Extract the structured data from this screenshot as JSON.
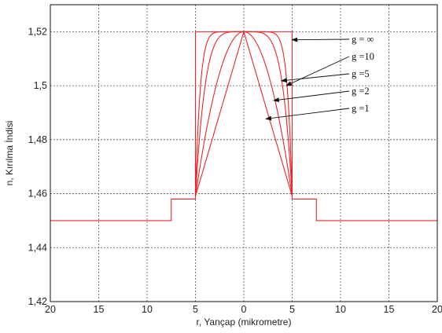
{
  "chart_data": {
    "type": "line",
    "title": "",
    "xlabel": "r, Yançap (mikrometre)",
    "ylabel": "n, Kırılma İndisi",
    "xlim": [
      -20,
      20
    ],
    "ylim": [
      1.42,
      1.53
    ],
    "x_ticks": [
      -20,
      -15,
      -10,
      -5,
      0,
      5,
      10,
      15,
      20
    ],
    "x_tick_labels": [
      "20",
      "15",
      "10",
      "5",
      "0",
      "5",
      "10",
      "15",
      "20"
    ],
    "y_ticks": [
      1.42,
      1.44,
      1.46,
      1.48,
      1.5,
      1.52
    ],
    "y_tick_labels": [
      "1,42",
      "1,44",
      "1,46",
      "1,48",
      "1,5",
      "1,52"
    ],
    "grid": true,
    "line_color": "#e8262b",
    "profile": {
      "n1": 1.52,
      "n_core_edge": 1.459,
      "n_ring": 1.458,
      "n_clad": 1.45,
      "core_radius": 5,
      "ring_radius": 7.5
    },
    "series": [
      {
        "g": "inf",
        "label": "g = ∞"
      },
      {
        "g": 10,
        "label": "g =10"
      },
      {
        "g": 5,
        "label": "g =5"
      },
      {
        "g": 2,
        "label": "g =2"
      },
      {
        "g": 1,
        "label": "g =1"
      }
    ],
    "annotations": [
      {
        "text": "g = ∞",
        "target_series": "inf",
        "target_r": 4.9,
        "target_n": 1.517
      },
      {
        "text": "g =10",
        "target_series": 10,
        "target_r": 4.3,
        "target_n": 1.5
      },
      {
        "text": "g =5",
        "target_series": 5,
        "target_r": 3.8,
        "target_n": 1.5018
      },
      {
        "text": "g =2",
        "target_series": 2,
        "target_r": 3.0,
        "target_n": 1.4945
      },
      {
        "text": "g =1",
        "target_series": 1,
        "target_r": 2.2,
        "target_n": 1.4877
      }
    ]
  }
}
